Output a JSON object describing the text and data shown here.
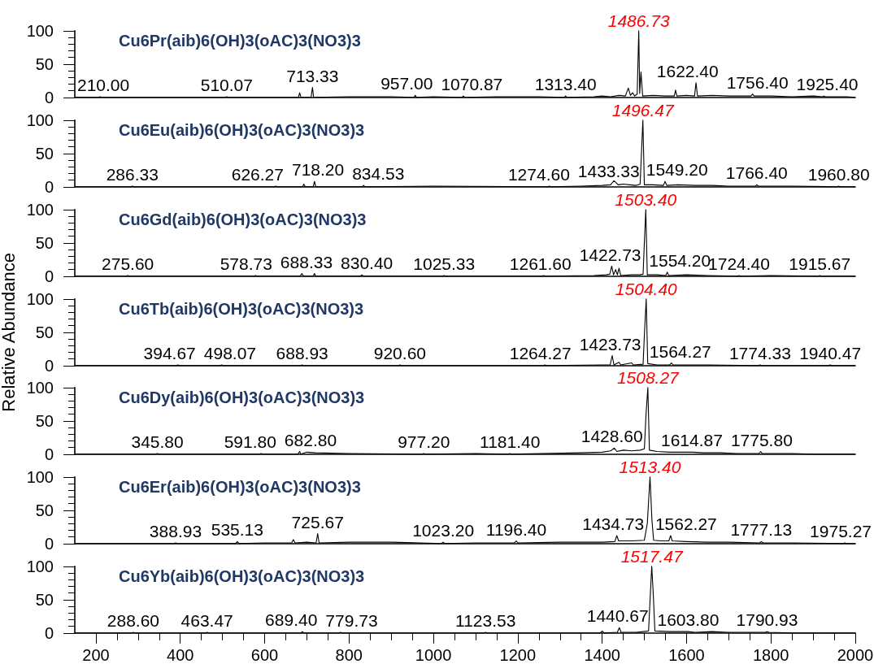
{
  "chart_data": [
    {
      "type": "line",
      "title": "Cu6Pr(aib)6(OH)3(oAC)3(NO3)3",
      "color": "#000000",
      "tick_labels": "y",
      "xlim": [
        150,
        2000
      ],
      "ylim": [
        0,
        100
      ],
      "yticks": [
        0,
        {
          "value": 10,
          "label": null
        },
        {
          "value": 20,
          "label": null
        },
        {
          "value": 30,
          "label": null
        },
        {
          "value": 40,
          "label": null
        },
        50,
        {
          "value": 60,
          "label": null
        },
        {
          "value": 70,
          "label": null
        },
        {
          "value": 80,
          "label": null
        },
        {
          "value": 90,
          "label": null
        },
        100
      ],
      "x": [
        150,
        207,
        210,
        213,
        507,
        510.07,
        513,
        680,
        683,
        686,
        710,
        713.33,
        716,
        800,
        900,
        954,
        957,
        960,
        1000,
        1068,
        1070.87,
        1074,
        1150,
        1250,
        1310,
        1313.4,
        1316,
        1380,
        1400,
        1420,
        1440,
        1455,
        1462,
        1467,
        1472,
        1477,
        1483,
        1486.73,
        1489,
        1492,
        1496,
        1520,
        1550,
        1571,
        1574,
        1577,
        1600,
        1619,
        1622.4,
        1626,
        1660,
        1700,
        1740,
        1753,
        1756.4,
        1760,
        1800,
        1850,
        1900,
        1922,
        1925.4,
        1929,
        1980,
        2000
      ],
      "values": [
        0,
        0,
        1,
        0,
        0,
        1,
        0,
        0,
        7,
        0,
        0,
        15,
        0,
        1,
        1,
        0,
        3,
        0,
        1,
        0,
        2,
        0,
        1,
        1,
        0,
        2,
        0,
        1,
        2,
        1,
        3,
        2,
        14,
        3,
        7,
        2,
        5,
        100,
        6,
        38,
        2,
        3,
        2,
        2,
        11,
        2,
        3,
        2,
        22,
        2,
        3,
        2,
        2,
        2,
        5,
        2,
        2,
        1,
        2,
        1,
        2,
        1,
        1,
        0
      ],
      "annotations": [
        {
          "text": "210.00",
          "x": 210,
          "y": 1
        },
        {
          "text": "510.07",
          "x": 510.07,
          "y": 1
        },
        {
          "text": "713.33",
          "x": 713.33,
          "y": 15
        },
        {
          "text": "957.00",
          "x": 957,
          "y": 3
        },
        {
          "text": "1070.87",
          "x": 1070.87,
          "y": 2
        },
        {
          "text": "1313.40",
          "x": 1313.4,
          "y": 2
        },
        {
          "text": "1486.73",
          "x": 1486.73,
          "y": 100
        },
        {
          "text": "1622.40",
          "x": 1622.4,
          "y": 22
        },
        {
          "text": "1756.40",
          "x": 1756.4,
          "y": 5
        },
        {
          "text": "1925.40",
          "x": 1925.4,
          "y": 2
        }
      ]
    },
    {
      "type": "line",
      "title": "Cu6Eu(aib)6(OH)3(oAC)3(NO3)3",
      "color": "#000000",
      "tick_labels": "y",
      "xlim": [
        150,
        2000
      ],
      "ylim": [
        0,
        100
      ],
      "yticks": [
        0,
        {
          "value": 10,
          "label": null
        },
        {
          "value": 20,
          "label": null
        },
        {
          "value": 30,
          "label": null
        },
        {
          "value": 40,
          "label": null
        },
        50,
        {
          "value": 60,
          "label": null
        },
        {
          "value": 70,
          "label": null
        },
        {
          "value": 80,
          "label": null
        },
        {
          "value": 90,
          "label": null
        },
        100
      ],
      "x": [
        150,
        283,
        286.33,
        290,
        623,
        626.27,
        630,
        690,
        693,
        696,
        715,
        718.2,
        721,
        831,
        834.53,
        838,
        1000,
        1271,
        1274.6,
        1278,
        1350,
        1400,
        1420,
        1428,
        1433.33,
        1438,
        1450,
        1465,
        1480,
        1490,
        1496.47,
        1500,
        1520,
        1545,
        1549.2,
        1553,
        1580,
        1620,
        1660,
        1700,
        1763,
        1766.4,
        1770,
        1850,
        1957,
        1960.8,
        1964,
        2000
      ],
      "values": [
        0,
        0,
        1,
        0,
        0,
        1,
        0,
        0,
        4,
        0,
        0,
        8,
        0,
        0,
        2,
        0,
        1,
        0,
        1,
        0,
        1,
        2,
        3,
        9,
        6,
        3,
        4,
        3,
        2,
        4,
        100,
        3,
        3,
        2,
        8,
        2,
        3,
        2,
        2,
        1,
        1,
        3,
        1,
        1,
        0,
        1,
        0,
        0
      ],
      "annotations": [
        {
          "text": "286.33",
          "x": 286.33,
          "y": 1
        },
        {
          "text": "626.27",
          "x": 626.27,
          "y": 1
        },
        {
          "text": "718.20",
          "x": 718.2,
          "y": 8
        },
        {
          "text": "834.53",
          "x": 834.53,
          "y": 2
        },
        {
          "text": "1274.60",
          "x": 1274.6,
          "y": 1
        },
        {
          "text": "1433.33",
          "x": 1433.33,
          "y": 6
        },
        {
          "text": "1496.47",
          "x": 1496.47,
          "y": 100
        },
        {
          "text": "1549.20",
          "x": 1549.2,
          "y": 8
        },
        {
          "text": "1766.40",
          "x": 1766.4,
          "y": 3
        },
        {
          "text": "1960.80",
          "x": 1960.8,
          "y": 1
        }
      ]
    },
    {
      "type": "line",
      "title": "Cu6Gd(aib)6(OH)3(oAC)3(NO3)3",
      "color": "#000000",
      "tick_labels": "y",
      "xlim": [
        150,
        2000
      ],
      "ylim": [
        0,
        100
      ],
      "yticks": [
        0,
        {
          "value": 10,
          "label": null
        },
        {
          "value": 20,
          "label": null
        },
        {
          "value": 30,
          "label": null
        },
        {
          "value": 40,
          "label": null
        },
        50,
        {
          "value": 60,
          "label": null
        },
        {
          "value": 70,
          "label": null
        },
        {
          "value": 80,
          "label": null
        },
        {
          "value": 90,
          "label": null
        },
        100
      ],
      "x": [
        150,
        272,
        275.6,
        279,
        575,
        578.73,
        582,
        684,
        688.33,
        692,
        715,
        718,
        721,
        827,
        830.4,
        834,
        1022,
        1025.33,
        1029,
        1258,
        1261.6,
        1265,
        1380,
        1410,
        1418,
        1422.73,
        1427,
        1432,
        1436,
        1440,
        1444,
        1470,
        1490,
        1497,
        1500,
        1503.4,
        1507,
        1530,
        1551,
        1554.2,
        1558,
        1600,
        1650,
        1721,
        1724.4,
        1728,
        1800,
        1912,
        1915.67,
        1919,
        2000
      ],
      "values": [
        0,
        0,
        1,
        0,
        0,
        1,
        0,
        0,
        4,
        0,
        0,
        4,
        0,
        0,
        2,
        0,
        0,
        1,
        0,
        0,
        1,
        0,
        1,
        2,
        3,
        15,
        2,
        10,
        2,
        12,
        1,
        2,
        2,
        3,
        50,
        100,
        2,
        2,
        1,
        6,
        1,
        2,
        1,
        0,
        1,
        0,
        1,
        0,
        1,
        0,
        0
      ],
      "annotations": [
        {
          "text": "275.60",
          "x": 275.6,
          "y": 1
        },
        {
          "text": "578.73",
          "x": 578.73,
          "y": 1
        },
        {
          "text": "688.33",
          "x": 688.33,
          "y": 4
        },
        {
          "text": "830.40",
          "x": 830.4,
          "y": 2
        },
        {
          "text": "1025.33",
          "x": 1025.33,
          "y": 1
        },
        {
          "text": "1261.60",
          "x": 1261.6,
          "y": 1
        },
        {
          "text": "1422.73",
          "x": 1422.73,
          "y": 15
        },
        {
          "text": "1503.40",
          "x": 1503.4,
          "y": 100
        },
        {
          "text": "1554.20",
          "x": 1554.2,
          "y": 6
        },
        {
          "text": "1724.40",
          "x": 1724.4,
          "y": 1
        },
        {
          "text": "1915.67",
          "x": 1915.67,
          "y": 1
        }
      ]
    },
    {
      "type": "line",
      "title": "Cu6Tb(aib)6(OH)3(oAC)3(NO3)3",
      "ylabel": "Relative Abundance",
      "color": "#000000",
      "tick_labels": "y",
      "xlim": [
        150,
        2000
      ],
      "ylim": [
        0,
        100
      ],
      "yticks": [
        0,
        {
          "value": 10,
          "label": null
        },
        {
          "value": 20,
          "label": null
        },
        {
          "value": 30,
          "label": null
        },
        {
          "value": 40,
          "label": null
        },
        50,
        {
          "value": 60,
          "label": null
        },
        {
          "value": 70,
          "label": null
        },
        {
          "value": 80,
          "label": null
        },
        {
          "value": 90,
          "label": null
        },
        100
      ],
      "x": [
        150,
        391,
        394.67,
        398,
        494,
        498.07,
        502,
        685,
        688.93,
        692,
        917,
        920.6,
        924,
        1261,
        1264.27,
        1268,
        1400,
        1419,
        1423.73,
        1428,
        1440,
        1444,
        1470,
        1474,
        1497,
        1500,
        1504.4,
        1508,
        1530,
        1560,
        1564.27,
        1568,
        1650,
        1770,
        1774.33,
        1778,
        1936,
        1940.47,
        1944,
        2000
      ],
      "values": [
        0,
        0,
        1,
        0,
        0,
        1,
        0,
        0,
        1,
        0,
        0,
        1,
        0,
        0,
        1,
        0,
        1,
        1,
        15,
        1,
        5,
        1,
        4,
        1,
        2,
        45,
        100,
        3,
        1,
        1,
        4,
        1,
        1,
        0,
        1,
        0,
        0,
        1,
        0,
        0
      ],
      "annotations": [
        {
          "text": "394.67",
          "x": 394.67,
          "y": 1
        },
        {
          "text": "498.07",
          "x": 498.07,
          "y": 1
        },
        {
          "text": "688.93",
          "x": 688.93,
          "y": 1
        },
        {
          "text": "920.60",
          "x": 920.6,
          "y": 1
        },
        {
          "text": "1264.27",
          "x": 1264.27,
          "y": 1
        },
        {
          "text": "1423.73",
          "x": 1423.73,
          "y": 15
        },
        {
          "text": "1504.40",
          "x": 1504.4,
          "y": 100
        },
        {
          "text": "1564.27",
          "x": 1564.27,
          "y": 4
        },
        {
          "text": "1774.33",
          "x": 1774.33,
          "y": 1
        },
        {
          "text": "1940.47",
          "x": 1940.47,
          "y": 1
        }
      ]
    },
    {
      "type": "line",
      "title": "Cu6Dy(aib)6(OH)3(oAC)3(NO3)3",
      "color": "#000000",
      "tick_labels": "y",
      "xlim": [
        150,
        2000
      ],
      "ylim": [
        0,
        100
      ],
      "yticks": [
        0,
        {
          "value": 10,
          "label": null
        },
        {
          "value": 20,
          "label": null
        },
        {
          "value": 30,
          "label": null
        },
        {
          "value": 40,
          "label": null
        },
        50,
        {
          "value": 60,
          "label": null
        },
        {
          "value": 70,
          "label": null
        },
        {
          "value": 80,
          "label": null
        },
        {
          "value": 90,
          "label": null
        },
        100
      ],
      "x": [
        150,
        342,
        345.8,
        349,
        588,
        591.8,
        595,
        679,
        682.8,
        686,
        700,
        720,
        800,
        974,
        977.2,
        980,
        1100,
        1178,
        1181.4,
        1184,
        1350,
        1400,
        1420,
        1428.6,
        1435,
        1450,
        1470,
        1490,
        1500,
        1504,
        1508.27,
        1512,
        1530,
        1560,
        1590,
        1614.87,
        1640,
        1680,
        1720,
        1772,
        1775.8,
        1779,
        1850,
        1900,
        2000
      ],
      "values": [
        0,
        0,
        1,
        0,
        0,
        1,
        0,
        0,
        4,
        0,
        3,
        2,
        1,
        0,
        1,
        0,
        1,
        0,
        1,
        0,
        2,
        3,
        5,
        9,
        4,
        6,
        5,
        6,
        8,
        60,
        100,
        6,
        4,
        3,
        3,
        3,
        2,
        2,
        1,
        1,
        4,
        1,
        1,
        0,
        0
      ],
      "annotations": [
        {
          "text": "345.80",
          "x": 345.8,
          "y": 1
        },
        {
          "text": "591.80",
          "x": 591.8,
          "y": 1
        },
        {
          "text": "682.80",
          "x": 682.8,
          "y": 4
        },
        {
          "text": "977.20",
          "x": 977.2,
          "y": 1
        },
        {
          "text": "1181.40",
          "x": 1181.4,
          "y": 1
        },
        {
          "text": "1428.60",
          "x": 1428.6,
          "y": 9
        },
        {
          "text": "1508.27",
          "x": 1508.27,
          "y": 100
        },
        {
          "text": "1614.87",
          "x": 1614.87,
          "y": 3
        },
        {
          "text": "1775.80",
          "x": 1775.8,
          "y": 4
        }
      ]
    },
    {
      "type": "line",
      "title": "Cu6Er(aib)6(OH)3(oAC)3(NO3)3",
      "color": "#000000",
      "tick_labels": "y",
      "xlim": [
        150,
        2000
      ],
      "ylim": [
        0,
        100
      ],
      "yticks": [
        0,
        {
          "value": 10,
          "label": null
        },
        {
          "value": 20,
          "label": null
        },
        {
          "value": 30,
          "label": null
        },
        {
          "value": 40,
          "label": null
        },
        50,
        {
          "value": 60,
          "label": null
        },
        {
          "value": 70,
          "label": null
        },
        {
          "value": 80,
          "label": null
        },
        {
          "value": 90,
          "label": null
        },
        100
      ],
      "x": [
        150,
        385,
        388.93,
        392,
        531,
        535.13,
        539,
        600,
        664,
        668,
        672,
        700,
        722,
        725.67,
        729,
        800,
        900,
        1019,
        1023.2,
        1027,
        1100,
        1192,
        1196.4,
        1200,
        1300,
        1400,
        1430,
        1434.73,
        1439,
        1470,
        1500,
        1507,
        1513.4,
        1518,
        1522,
        1540,
        1558,
        1562.27,
        1566,
        1600,
        1650,
        1700,
        1773,
        1777.13,
        1781,
        1850,
        1971,
        1975.27,
        1979,
        2000
      ],
      "values": [
        0,
        0,
        1,
        0,
        0,
        3,
        0,
        1,
        1,
        6,
        1,
        2,
        1,
        15,
        1,
        2,
        2,
        0,
        2,
        0,
        1,
        1,
        4,
        1,
        2,
        2,
        3,
        12,
        4,
        4,
        5,
        30,
        100,
        35,
        5,
        4,
        4,
        12,
        4,
        3,
        2,
        2,
        1,
        3,
        1,
        1,
        0,
        1,
        0,
        0
      ],
      "annotations": [
        {
          "text": "388.93",
          "x": 388.93,
          "y": 1
        },
        {
          "text": "535.13",
          "x": 535.13,
          "y": 3
        },
        {
          "text": "725.67",
          "x": 725.67,
          "y": 15
        },
        {
          "text": "1023.20",
          "x": 1023.2,
          "y": 2
        },
        {
          "text": "1196.40",
          "x": 1196.4,
          "y": 4
        },
        {
          "text": "1434.73",
          "x": 1434.73,
          "y": 12
        },
        {
          "text": "1513.40",
          "x": 1513.4,
          "y": 100
        },
        {
          "text": "1562.27",
          "x": 1562.27,
          "y": 12
        },
        {
          "text": "1777.13",
          "x": 1777.13,
          "y": 3
        },
        {
          "text": "1975.27",
          "x": 1975.27,
          "y": 1
        }
      ]
    },
    {
      "type": "line",
      "title": "Cu6Yb(aib)6(OH)3(oAC)3(NO3)3",
      "color": "#000000",
      "xlim": [
        150,
        2000
      ],
      "ylim": [
        0,
        100
      ],
      "xticks": [
        200,
        {
          "value": 250,
          "label": null
        },
        {
          "value": 300,
          "label": null
        },
        {
          "value": 350,
          "label": null
        },
        400,
        {
          "value": 450,
          "label": null
        },
        {
          "value": 500,
          "label": null
        },
        {
          "value": 550,
          "label": null
        },
        600,
        {
          "value": 650,
          "label": null
        },
        {
          "value": 700,
          "label": null
        },
        {
          "value": 750,
          "label": null
        },
        800,
        {
          "value": 850,
          "label": null
        },
        {
          "value": 900,
          "label": null
        },
        {
          "value": 950,
          "label": null
        },
        1000,
        {
          "value": 1050,
          "label": null
        },
        {
          "value": 1100,
          "label": null
        },
        {
          "value": 1150,
          "label": null
        },
        1200,
        {
          "value": 1250,
          "label": null
        },
        {
          "value": 1300,
          "label": null
        },
        {
          "value": 1350,
          "label": null
        },
        1400,
        {
          "value": 1450,
          "label": null
        },
        {
          "value": 1500,
          "label": null
        },
        {
          "value": 1550,
          "label": null
        },
        1600,
        {
          "value": 1650,
          "label": null
        },
        {
          "value": 1700,
          "label": null
        },
        {
          "value": 1750,
          "label": null
        },
        1800,
        {
          "value": 1850,
          "label": null
        },
        {
          "value": 1900,
          "label": null
        },
        {
          "value": 1950,
          "label": null
        },
        2000
      ],
      "yticks": [
        0,
        {
          "value": 10,
          "label": null
        },
        {
          "value": 20,
          "label": null
        },
        {
          "value": 30,
          "label": null
        },
        {
          "value": 40,
          "label": null
        },
        50,
        {
          "value": 60,
          "label": null
        },
        {
          "value": 70,
          "label": null
        },
        {
          "value": 80,
          "label": null
        },
        {
          "value": 90,
          "label": null
        },
        100
      ],
      "x": [
        150,
        285,
        288.6,
        292,
        460,
        463.47,
        467,
        686,
        689.4,
        693,
        776,
        779.73,
        783,
        1120,
        1123.53,
        1127,
        1395,
        1400,
        1405,
        1436,
        1440.67,
        1445,
        1480,
        1510,
        1517.47,
        1521,
        1525,
        1560,
        1600,
        1603.8,
        1620,
        1660,
        1700,
        1787,
        1790.93,
        1795,
        1850,
        2000
      ],
      "values": [
        0,
        0,
        1,
        0,
        0,
        1,
        0,
        0,
        2,
        0,
        0,
        1,
        0,
        0,
        1,
        0,
        0,
        3,
        0,
        1,
        8,
        1,
        1,
        3,
        100,
        60,
        3,
        2,
        2,
        2,
        1,
        2,
        1,
        1,
        2,
        1,
        0,
        0
      ],
      "annotations": [
        {
          "text": "288.60",
          "x": 288.6,
          "y": 1
        },
        {
          "text": "463.47",
          "x": 463.47,
          "y": 1
        },
        {
          "text": "689.40",
          "x": 689.4,
          "y": 2
        },
        {
          "text": "779.73",
          "x": 779.73,
          "y": 1
        },
        {
          "text": "1123.53",
          "x": 1123.53,
          "y": 1
        },
        {
          "text": "1440.67",
          "x": 1440.67,
          "y": 8
        },
        {
          "text": "1517.47",
          "x": 1517.47,
          "y": 100
        },
        {
          "text": "1603.80",
          "x": 1603.8,
          "y": 2
        },
        {
          "text": "1790.93",
          "x": 1790.93,
          "y": 2
        }
      ]
    }
  ]
}
